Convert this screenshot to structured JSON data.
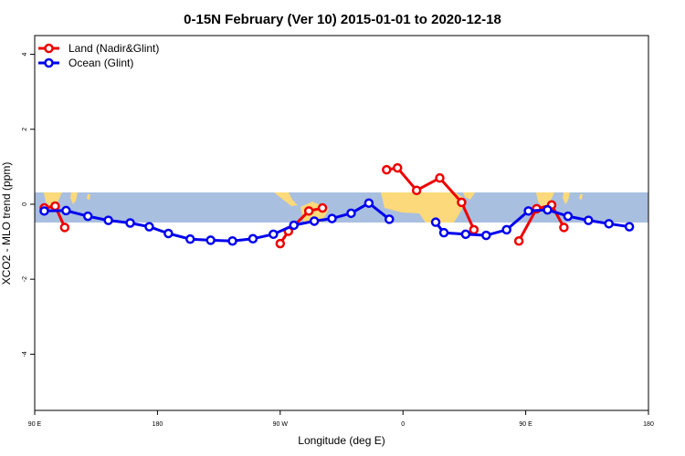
{
  "chart_data": {
    "type": "line",
    "title": "0-15N February (Ver 10)   2015-01-01 to 2020-12-18",
    "xlabel": "Longitude (deg E)",
    "ylabel": "XCO2 - MLO trend (ppm)",
    "xlim": [
      90,
      540
    ],
    "ylim": [
      -5.5,
      4.5
    ],
    "x_ticks": [
      {
        "value": 90,
        "label": "90 E"
      },
      {
        "value": 180,
        "label": "180"
      },
      {
        "value": 270,
        "label": "90 W"
      },
      {
        "value": 360,
        "label": "0"
      },
      {
        "value": 450,
        "label": "90 E"
      },
      {
        "value": 540,
        "label": "180"
      }
    ],
    "y_ticks": [
      {
        "value": -4,
        "label": "-4"
      },
      {
        "value": -2,
        "label": "-2"
      },
      {
        "value": 0,
        "label": "0"
      },
      {
        "value": 2,
        "label": "2"
      },
      {
        "value": 4,
        "label": "4"
      }
    ],
    "latitude_band": {
      "lat_min": 0,
      "lat_max": 15,
      "y_min": -0.45,
      "y_max": 0.35,
      "ocean_color": "#a8bfe0",
      "land_color": "#fcd97a"
    },
    "legend": {
      "position": "top-left",
      "entries": [
        "Land (Nadir&Glint)",
        "Ocean (Glint)"
      ]
    },
    "series": [
      {
        "name": "Land (Nadir&Glint)",
        "color": "#ee0000",
        "segments": [
          [
            [
              97,
              -0.1
            ],
            [
              105,
              -0.05
            ],
            [
              112,
              -0.62
            ]
          ],
          [
            [
              270,
              -1.05
            ],
            [
              276,
              -0.72
            ],
            [
              291,
              -0.18
            ],
            [
              301,
              -0.1
            ]
          ],
          [
            [
              348,
              0.92
            ],
            [
              356,
              0.97
            ],
            [
              370,
              0.37
            ],
            [
              387,
              0.7
            ],
            [
              403,
              0.05
            ],
            [
              412,
              -0.68
            ]
          ],
          [
            [
              445,
              -0.98
            ],
            [
              458,
              -0.12
            ],
            [
              469,
              -0.02
            ],
            [
              478,
              -0.62
            ]
          ]
        ]
      },
      {
        "name": "Ocean (Glint)",
        "color": "#0000ee",
        "segments": [
          [
            [
              97,
              -0.18
            ],
            [
              113,
              -0.17
            ],
            [
              129,
              -0.32
            ],
            [
              144,
              -0.43
            ],
            [
              160,
              -0.5
            ],
            [
              174,
              -0.6
            ],
            [
              188,
              -0.78
            ],
            [
              204,
              -0.93
            ],
            [
              219,
              -0.96
            ],
            [
              235,
              -0.98
            ],
            [
              250,
              -0.92
            ],
            [
              265,
              -0.8
            ],
            [
              280,
              -0.56
            ],
            [
              295,
              -0.45
            ],
            [
              308,
              -0.38
            ],
            [
              322,
              -0.24
            ],
            [
              335,
              0.03
            ],
            [
              350,
              -0.4
            ]
          ],
          [
            [
              384,
              -0.48
            ],
            [
              390,
              -0.76
            ],
            [
              406,
              -0.8
            ],
            [
              421,
              -0.83
            ],
            [
              436,
              -0.68
            ],
            [
              452,
              -0.18
            ],
            [
              466,
              -0.15
            ],
            [
              481,
              -0.32
            ],
            [
              496,
              -0.43
            ],
            [
              511,
              -0.52
            ],
            [
              526,
              -0.6
            ]
          ]
        ]
      }
    ]
  }
}
